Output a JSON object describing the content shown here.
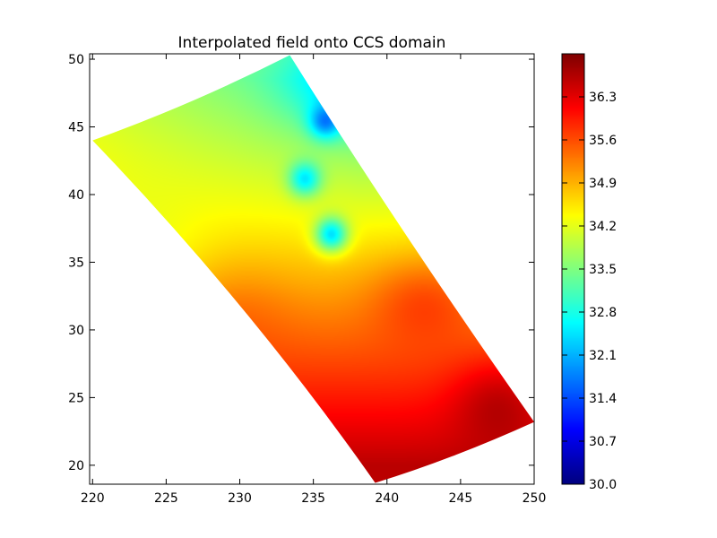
{
  "chart_data": {
    "type": "heatmap",
    "title": "Interpolated field onto CCS domain",
    "xlabel": "",
    "ylabel": "",
    "xlim": [
      219.8,
      250
    ],
    "ylim": [
      18.6,
      50.4
    ],
    "x_ticks": [
      220,
      225,
      230,
      235,
      240,
      245,
      250
    ],
    "y_ticks": [
      20,
      25,
      30,
      35,
      40,
      45,
      50
    ],
    "colormap": "jet",
    "color_range": [
      30.0,
      37.0
    ],
    "colorbar_ticks": [
      "30.0",
      "30.7",
      "31.4",
      "32.1",
      "32.8",
      "33.5",
      "34.2",
      "34.9",
      "35.6",
      "36.3"
    ],
    "grid": false,
    "domain_corners": [
      {
        "lon": 220.0,
        "lat": 44.0
      },
      {
        "lon": 233.4,
        "lat": 50.3
      },
      {
        "lon": 250.0,
        "lat": 23.2
      },
      {
        "lon": 239.2,
        "lat": 18.7
      }
    ],
    "field_values": {
      "northwest_interior": 34.0,
      "north_center": 33.0,
      "north_edge_near_235": 32.5,
      "southwest_coast": 34.5,
      "southeast_corner": 36.6,
      "fresh_spots": [
        {
          "lon": 235.8,
          "lat": 45.5,
          "value": 31.5
        },
        {
          "lon": 234.4,
          "lat": 41.2,
          "value": 32.3
        },
        {
          "lon": 236.2,
          "lat": 37.1,
          "value": 32.2
        }
      ],
      "warm_lobe": {
        "lon": 242.5,
        "lat": 32.5,
        "value": 35.0
      },
      "hot_region": {
        "lon": 247.5,
        "lat": 25.0,
        "value": 36.6
      }
    }
  }
}
